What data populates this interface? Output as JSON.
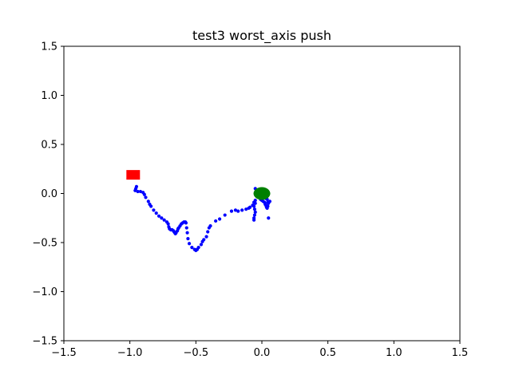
{
  "chart_data": {
    "type": "scatter",
    "title": "test3 worst_axis push",
    "xlabel": "",
    "ylabel": "",
    "xlim": [
      -1.5,
      1.5
    ],
    "ylim": [
      -1.5,
      1.5
    ],
    "grid": false,
    "x_ticks": [
      -1.5,
      -1.0,
      -0.5,
      0.0,
      0.5,
      1.0,
      1.5
    ],
    "x_tick_labels": [
      "−1.5",
      "−1.0",
      "−0.5",
      "0.0",
      "0.5",
      "1.0",
      "1.5"
    ],
    "y_ticks": [
      1.5,
      1.0,
      0.5,
      0.0,
      -0.5,
      -1.0,
      -1.5
    ],
    "y_tick_labels": [
      "1.5",
      "1.0",
      "0.5",
      "0.0",
      "−0.5",
      "−1.0",
      "−1.5"
    ],
    "series": [
      {
        "marker": "point",
        "color": "#0000ff",
        "points": [
          [
            -0.95,
            0.07
          ],
          [
            -0.955,
            0.05
          ],
          [
            -0.96,
            0.03
          ],
          [
            -0.94,
            0.02
          ],
          [
            -0.92,
            0.02
          ],
          [
            -0.9,
            0.01
          ],
          [
            -0.89,
            -0.01
          ],
          [
            -0.88,
            -0.04
          ],
          [
            -0.86,
            -0.08
          ],
          [
            -0.85,
            -0.11
          ],
          [
            -0.84,
            -0.13
          ],
          [
            -0.82,
            -0.17
          ],
          [
            -0.8,
            -0.2
          ],
          [
            -0.78,
            -0.23
          ],
          [
            -0.76,
            -0.25
          ],
          [
            -0.74,
            -0.27
          ],
          [
            -0.72,
            -0.29
          ],
          [
            -0.71,
            -0.31
          ],
          [
            -0.705,
            -0.34
          ],
          [
            -0.7,
            -0.36
          ],
          [
            -0.69,
            -0.37
          ],
          [
            -0.68,
            -0.37
          ],
          [
            -0.67,
            -0.38
          ],
          [
            -0.665,
            -0.39
          ],
          [
            -0.66,
            -0.4
          ],
          [
            -0.655,
            -0.41
          ],
          [
            -0.65,
            -0.4
          ],
          [
            -0.64,
            -0.38
          ],
          [
            -0.635,
            -0.36
          ],
          [
            -0.63,
            -0.35
          ],
          [
            -0.62,
            -0.33
          ],
          [
            -0.61,
            -0.31
          ],
          [
            -0.6,
            -0.3
          ],
          [
            -0.59,
            -0.29
          ],
          [
            -0.58,
            -0.29
          ],
          [
            -0.575,
            -0.3
          ],
          [
            -0.57,
            -0.35
          ],
          [
            -0.565,
            -0.4
          ],
          [
            -0.56,
            -0.46
          ],
          [
            -0.55,
            -0.51
          ],
          [
            -0.53,
            -0.55
          ],
          [
            -0.51,
            -0.57
          ],
          [
            -0.5,
            -0.58
          ],
          [
            -0.49,
            -0.57
          ],
          [
            -0.48,
            -0.55
          ],
          [
            -0.46,
            -0.52
          ],
          [
            -0.45,
            -0.49
          ],
          [
            -0.44,
            -0.47
          ],
          [
            -0.42,
            -0.44
          ],
          [
            -0.41,
            -0.39
          ],
          [
            -0.4,
            -0.35
          ],
          [
            -0.39,
            -0.33
          ],
          [
            -0.35,
            -0.28
          ],
          [
            -0.32,
            -0.26
          ],
          [
            -0.28,
            -0.22
          ],
          [
            -0.23,
            -0.18
          ],
          [
            -0.2,
            -0.17
          ],
          [
            -0.18,
            -0.18
          ],
          [
            -0.15,
            -0.17
          ],
          [
            -0.12,
            -0.16
          ],
          [
            -0.1,
            -0.15
          ],
          [
            -0.09,
            -0.14
          ],
          [
            -0.07,
            -0.12
          ],
          [
            -0.06,
            -0.09
          ],
          [
            -0.05,
            -0.07
          ],
          [
            -0.05,
            -0.1
          ],
          [
            -0.06,
            -0.13
          ],
          [
            -0.055,
            -0.16
          ],
          [
            -0.05,
            -0.19
          ],
          [
            -0.055,
            -0.22
          ],
          [
            -0.06,
            -0.25
          ],
          [
            -0.06,
            -0.27
          ],
          [
            -0.05,
            0.05
          ],
          [
            -0.04,
            0.03
          ],
          [
            -0.04,
            0.01
          ],
          [
            -0.03,
            -0.02
          ],
          [
            -0.02,
            -0.04
          ],
          [
            -0.01,
            -0.06
          ],
          [
            0.0,
            -0.07
          ],
          [
            0.01,
            -0.08
          ],
          [
            0.02,
            -0.09
          ],
          [
            0.025,
            -0.11
          ],
          [
            0.03,
            -0.12
          ],
          [
            0.035,
            -0.14
          ],
          [
            0.04,
            -0.15
          ],
          [
            0.045,
            -0.13
          ],
          [
            0.05,
            -0.1
          ],
          [
            0.05,
            -0.25
          ],
          [
            0.06,
            -0.08
          ],
          [
            0.03,
            -0.05
          ],
          [
            0.02,
            -0.03
          ],
          [
            0.01,
            -0.01
          ],
          [
            -0.02,
            -0.01
          ],
          [
            -0.035,
            0.0
          ],
          [
            0.04,
            -0.06
          ],
          [
            0.045,
            -0.09
          ]
        ]
      }
    ],
    "markers": [
      {
        "shape": "square",
        "color": "#ff0000",
        "x": -0.975,
        "y": 0.19
      },
      {
        "shape": "circle",
        "color": "#008000",
        "x": 0.0,
        "y": 0.0
      }
    ]
  }
}
